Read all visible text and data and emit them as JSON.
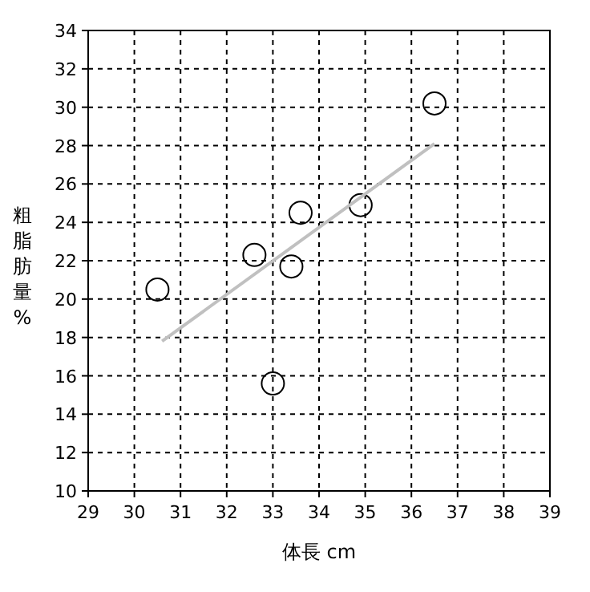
{
  "chart_data": {
    "type": "scatter",
    "xlabel": "体長 cm",
    "ylabel": "粗脂肪量%",
    "xlim": [
      29,
      39
    ],
    "xticks": [
      29,
      30,
      31,
      32,
      33,
      34,
      35,
      36,
      37,
      38,
      39
    ],
    "ylim": [
      10,
      34
    ],
    "yticks": [
      10,
      12,
      14,
      16,
      18,
      20,
      22,
      24,
      26,
      28,
      30,
      32,
      34
    ],
    "grid": true,
    "series": [
      {
        "type": "scatter",
        "color": "#000000",
        "marker": "circle",
        "x": [
          30.5,
          32.6,
          33.0,
          33.4,
          33.6,
          34.9,
          36.5
        ],
        "values": [
          20.5,
          22.3,
          15.6,
          21.7,
          24.5,
          24.9,
          30.2
        ]
      },
      {
        "type": "line",
        "color": "#c0c0c0",
        "x": [
          30.6,
          36.5
        ],
        "values": [
          17.8,
          28.1
        ]
      }
    ]
  }
}
